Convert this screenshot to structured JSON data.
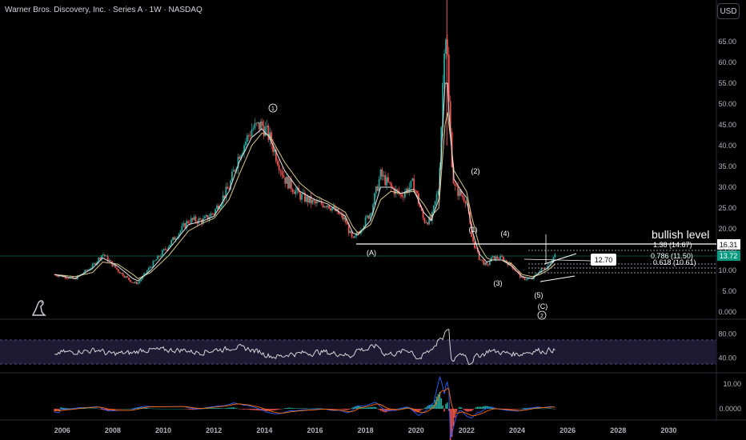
{
  "title": "Warner Bros. Discovery, Inc. · Series A · 1W · NASDAQ",
  "currency_button": "USD",
  "colors": {
    "background": "#000000",
    "up": "#26a69a",
    "down": "#ef5350",
    "ma_fast": "#e6e6e6",
    "ma_slow": "#d9c88c",
    "last_price": "#089981",
    "axis_text": "#b2b5be",
    "rsi_band": "#1e1a33"
  },
  "annotations": {
    "wave_labels": [
      "1",
      "(A)",
      "(2)",
      "(1)",
      "(4)",
      "(3)",
      "(5)",
      "(C)",
      "2"
    ],
    "bullish_level_text": "bullish level",
    "bullish_level_price": "16.31",
    "last_price": "13.72",
    "fib_labels": [
      "1.38 (14.67)",
      "0.786 (11.50)",
      "0.618 (10.61)"
    ],
    "callout_price": "12.70"
  },
  "chart_data": [
    {
      "type": "candlestick",
      "title": "Warner Bros. Discovery, Inc. · Series A · 1W · NASDAQ",
      "x": [
        2005.7,
        2006.5,
        2007.2,
        2007.6,
        2008.2,
        2008.8,
        2009.0,
        2009.5,
        2010.2,
        2011.0,
        2011.6,
        2012.0,
        2012.6,
        2013.0,
        2013.5,
        2013.9,
        2014.2,
        2014.8,
        2015.4,
        2016.0,
        2016.5,
        2017.2,
        2017.5,
        2017.7,
        2018.2,
        2018.6,
        2019.0,
        2019.4,
        2019.9,
        2020.3,
        2020.6,
        2020.9,
        2021.0,
        2021.15,
        2021.25,
        2021.3,
        2021.4,
        2021.5,
        2021.8,
        2022.0,
        2022.2,
        2022.5,
        2022.8,
        2023.0,
        2023.4,
        2023.8,
        2024.2,
        2024.6,
        2024.9,
        2025.2,
        2025.5
      ],
      "y": [
        9,
        8,
        11,
        14,
        10,
        7,
        7,
        11,
        16,
        22,
        22,
        24,
        30,
        38,
        44,
        45,
        42,
        32,
        28,
        26,
        26,
        22,
        17,
        19,
        24,
        33,
        30,
        28,
        31,
        22,
        22,
        30,
        45,
        70,
        60,
        50,
        38,
        30,
        28,
        27,
        18,
        13,
        11,
        13,
        13,
        11,
        8,
        8,
        10,
        11,
        13.72
      ],
      "xlim": [
        2005.3,
        2031.0
      ],
      "ylim": [
        0,
        75
      ],
      "y_ticks": [
        "65.00",
        "60.00",
        "55.00",
        "50.00",
        "45.00",
        "40.00",
        "35.00",
        "30.00",
        "25.00",
        "20.00",
        "15.00",
        "10.00",
        "5.00",
        "0.000"
      ],
      "x_ticks": [
        "2006",
        "2008",
        "2010",
        "2012",
        "2014",
        "2016",
        "2018",
        "2020",
        "2022",
        "2024",
        "2026",
        "2028",
        "2030"
      ],
      "horizontal_lines": [
        16.31,
        14.67,
        11.5,
        10.61
      ],
      "series": [
        {
          "name": "MA fast",
          "values": [
            9,
            8,
            10.5,
            13,
            11,
            8,
            7.5,
            10,
            15,
            21,
            22,
            23,
            29,
            36,
            42,
            44,
            42,
            34,
            29,
            27,
            26,
            23,
            19,
            18.5,
            22,
            30,
            30,
            28.5,
            29.5,
            24,
            22,
            27,
            38,
            55,
            55,
            48,
            40,
            32,
            29,
            27.5,
            20,
            14,
            12,
            12.5,
            12.5,
            11,
            8.5,
            8,
            9.5,
            10.5,
            12.5
          ]
        },
        {
          "name": "MA slow",
          "values": [
            9,
            8.5,
            9.5,
            12,
            11.5,
            9,
            8,
            9.5,
            13.5,
            19.5,
            21.5,
            22.5,
            27,
            33,
            40,
            43,
            42.5,
            36,
            31,
            28,
            26.5,
            24,
            20.5,
            19,
            21,
            27,
            29,
            28.5,
            29,
            26,
            23,
            25,
            33,
            45,
            48,
            45,
            40,
            34,
            31,
            29,
            23,
            16,
            13,
            12.5,
            12.5,
            11.5,
            9,
            8.5,
            9,
            10,
            11.5
          ]
        }
      ]
    },
    {
      "type": "line",
      "title": "",
      "ylim": [
        20,
        90
      ],
      "y_ticks": [
        "80.00",
        "40.00"
      ],
      "band": [
        30,
        70
      ]
    },
    {
      "type": "bar",
      "title": "",
      "ylim": [
        -5,
        15
      ],
      "y_ticks": [
        "10.00",
        "0.0000"
      ]
    }
  ]
}
